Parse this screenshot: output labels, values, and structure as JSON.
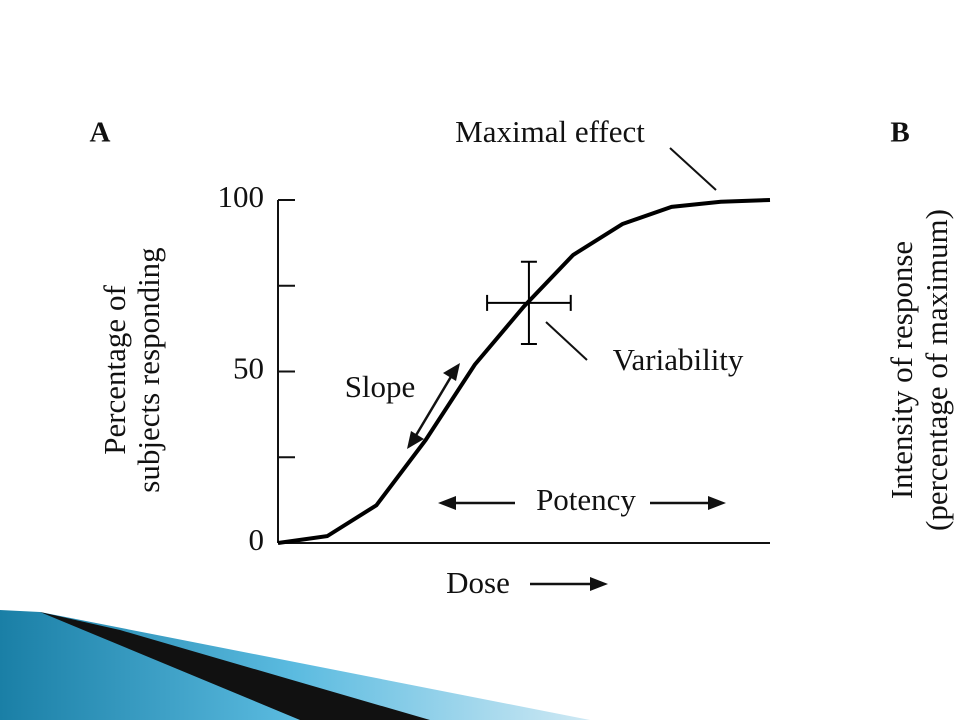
{
  "chart_data": {
    "type": "line",
    "panel_a": "A",
    "panel_b": "B",
    "ylabel": [
      "Percentage of",
      "subjects responding"
    ],
    "xlabel": "Dose",
    "ylabel_b": [
      "Intensity of response",
      "(percentage of maximum)"
    ],
    "annotations": {
      "max": "Maximal effect",
      "slope": "Slope",
      "variability": "Variability",
      "potency": "Potency"
    },
    "x": [
      0,
      10,
      20,
      30,
      40,
      50,
      60,
      70,
      80,
      90,
      100
    ],
    "values": [
      0,
      2,
      11,
      30,
      52,
      69,
      84,
      93,
      98,
      99.5,
      100
    ],
    "color": "#000000",
    "variability": {
      "x": 51,
      "y": 70,
      "xerr": 8.5,
      "yerr": 12
    },
    "xlim": [
      0,
      100
    ],
    "ylim": [
      0,
      100
    ],
    "yticks": [
      0,
      50,
      100
    ],
    "yminorticks": [
      25,
      75
    ]
  }
}
